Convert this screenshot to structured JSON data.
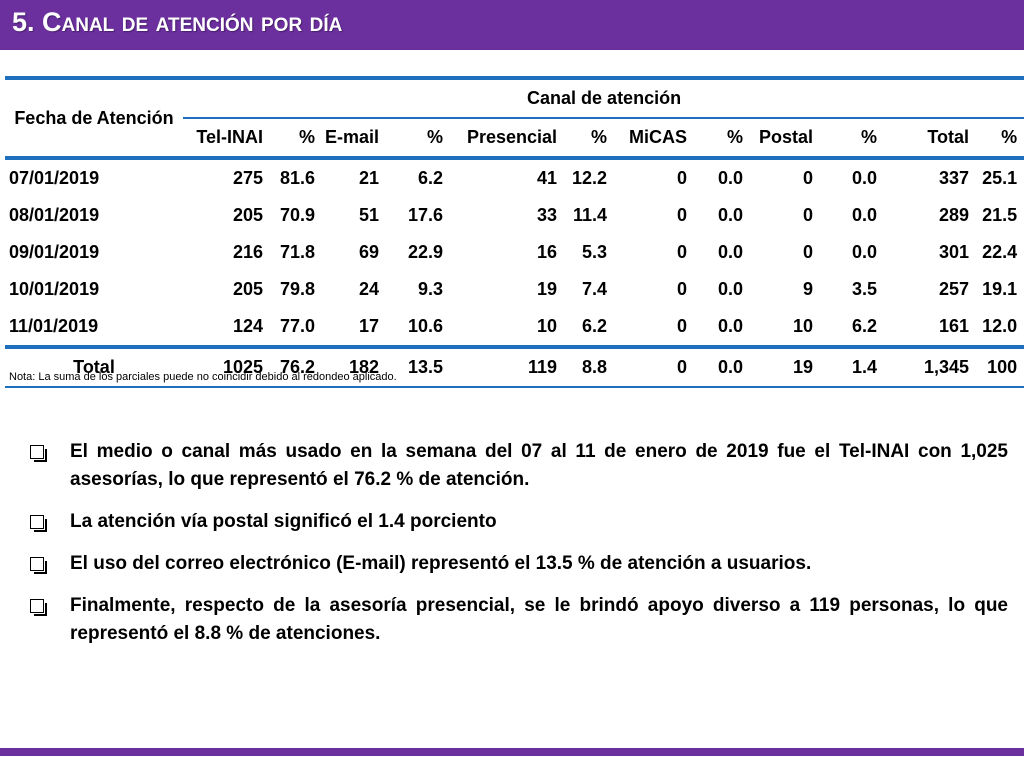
{
  "header": {
    "title": "5. Canal de atención por día"
  },
  "table": {
    "date_header": "Fecha de Atención",
    "group_header": "Canal de atención",
    "columns": [
      "Tel-INAI",
      "%",
      "E-mail",
      "%",
      "Presencial",
      "%",
      "MiCAS",
      "%",
      "Postal",
      "%",
      "Total",
      "%"
    ],
    "rows": [
      {
        "date": "07/01/2019",
        "values": [
          "275",
          "81.6",
          "21",
          "6.2",
          "41",
          "12.2",
          "0",
          "0.0",
          "0",
          "0.0",
          "337",
          "25.1"
        ]
      },
      {
        "date": "08/01/2019",
        "values": [
          "205",
          "70.9",
          "51",
          "17.6",
          "33",
          "11.4",
          "0",
          "0.0",
          "0",
          "0.0",
          "289",
          "21.5"
        ]
      },
      {
        "date": "09/01/2019",
        "values": [
          "216",
          "71.8",
          "69",
          "22.9",
          "16",
          "5.3",
          "0",
          "0.0",
          "0",
          "0.0",
          "301",
          "22.4"
        ]
      },
      {
        "date": "10/01/2019",
        "values": [
          "205",
          "79.8",
          "24",
          "9.3",
          "19",
          "7.4",
          "0",
          "0.0",
          "9",
          "3.5",
          "257",
          "19.1"
        ]
      },
      {
        "date": "11/01/2019",
        "values": [
          "124",
          "77.0",
          "17",
          "10.6",
          "10",
          "6.2",
          "0",
          "0.0",
          "10",
          "6.2",
          "161",
          "12.0"
        ]
      }
    ],
    "total": {
      "label": "Total",
      "values": [
        "1025",
        "76.2",
        "182",
        "13.5",
        "119",
        "8.8",
        "0",
        "0.0",
        "19",
        "1.4",
        "1,345",
        "100"
      ]
    },
    "note": "Nota: La suma de los parciales puede no coincidir debido al redondeo aplicado."
  },
  "bullets": [
    "El medio o canal más usado en la semana del 07 al 11 de enero de 2019 fue el Tel-INAI con 1,025 asesorías, lo que representó el 76.2 % de atención.",
    "La atención vía postal significó el 1.4 porciento",
    "El uso del correo electrónico (E-mail) representó el 13.5 % de atención a usuarios.",
    "Finalmente, respecto de la asesoría presencial, se le brindó apoyo diverso a 119 personas, lo que representó el 8.8 % de atenciones."
  ],
  "colors": {
    "brand_purple": "#6b2f9e",
    "table_line_blue": "#1f6fbf"
  },
  "icons": {
    "bullet": "checkbox-bullet-icon"
  }
}
